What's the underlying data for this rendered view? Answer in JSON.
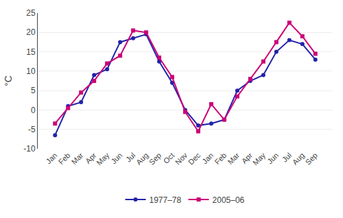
{
  "chart_data": {
    "type": "line",
    "categories": [
      "Jan",
      "Feb",
      "Mar",
      "Apr",
      "May",
      "Jun",
      "Jul",
      "Aug",
      "Sep",
      "Oct",
      "Nov",
      "Dec",
      "Jan",
      "Feb",
      "Mar",
      "Apr",
      "May",
      "Jun",
      "Jul",
      "Aug",
      "Sep"
    ],
    "series": [
      {
        "name": "1977–78",
        "color": "#2222aa",
        "marker": "circle",
        "line_style": "solid",
        "values": [
          -6.5,
          1.0,
          2.0,
          9.0,
          10.5,
          17.5,
          18.5,
          19.5,
          12.5,
          7.0,
          0.0,
          -4.0,
          -3.5,
          -2.5,
          5.0,
          7.5,
          9.0,
          15.0,
          18.0,
          17.0,
          13.0
        ]
      },
      {
        "name": "2005–06",
        "color": "#cc0077",
        "marker": "square",
        "line_style": "solid",
        "values": [
          -3.5,
          0.5,
          4.5,
          7.5,
          12.0,
          14.0,
          20.5,
          20.0,
          13.5,
          8.5,
          -0.5,
          -5.5,
          1.5,
          -2.5,
          3.5,
          8.0,
          12.5,
          17.5,
          22.5,
          19.0,
          14.5
        ]
      }
    ],
    "ylabel": "°C",
    "ylim": [
      -10,
      25
    ],
    "yticks": [
      -10,
      -5,
      0,
      5,
      10,
      15,
      20,
      25
    ],
    "grid": true,
    "legend": "bottom"
  }
}
